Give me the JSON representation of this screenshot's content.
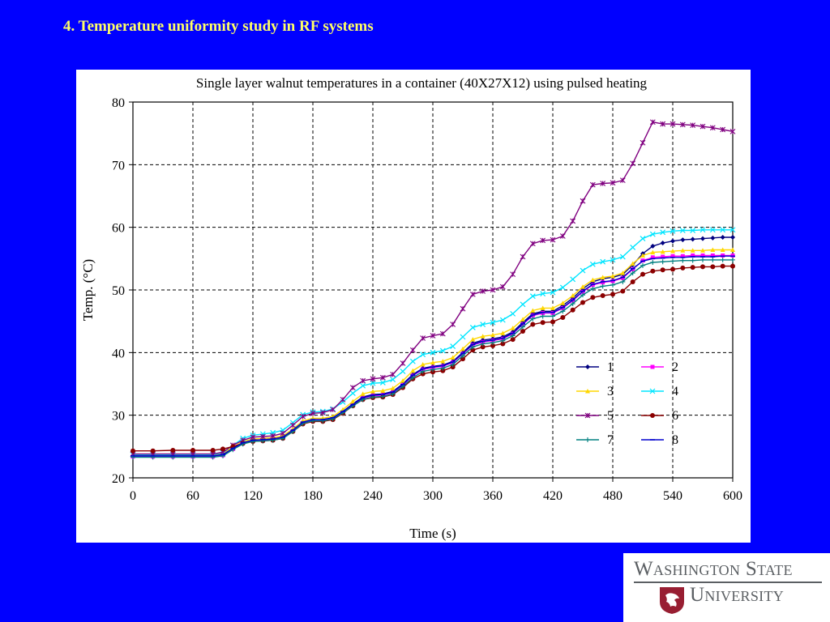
{
  "slide": {
    "title": "4. Temperature uniformity study in RF systems"
  },
  "logo": {
    "line1": "Washington State",
    "line2": "University",
    "color": "#5b5f63",
    "seal_color": "#981e32"
  },
  "chart_data": {
    "type": "line",
    "title": "Single layer walnut temperatures in a container (40X27X12) using pulsed heating",
    "xlabel": "Time (s)",
    "ylabel": "Temp. (°C)",
    "xlim": [
      0,
      600
    ],
    "ylim": [
      20,
      80
    ],
    "xticks": [
      0,
      60,
      120,
      180,
      240,
      300,
      360,
      420,
      480,
      540,
      600
    ],
    "yticks": [
      20,
      30,
      40,
      50,
      60,
      70,
      80
    ],
    "grid": true,
    "legend_placement": "lower-right",
    "x": [
      0,
      20,
      40,
      60,
      80,
      90,
      100,
      110,
      120,
      130,
      140,
      150,
      160,
      170,
      180,
      190,
      200,
      210,
      220,
      230,
      240,
      250,
      260,
      270,
      280,
      290,
      300,
      310,
      320,
      330,
      340,
      350,
      360,
      370,
      380,
      390,
      400,
      410,
      420,
      430,
      440,
      450,
      460,
      470,
      480,
      490,
      500,
      510,
      520,
      530,
      540,
      550,
      560,
      570,
      580,
      590,
      600
    ],
    "series": [
      {
        "name": "1",
        "color": "#000080",
        "marker": "diamond",
        "values": [
          23.6,
          23.6,
          23.6,
          23.6,
          23.6,
          23.8,
          24.8,
          25.6,
          26.0,
          26.1,
          26.2,
          26.5,
          27.6,
          28.9,
          29.3,
          29.3,
          29.6,
          30.6,
          31.8,
          32.9,
          33.3,
          33.4,
          33.8,
          35.0,
          36.5,
          37.5,
          37.8,
          38.0,
          38.6,
          40.0,
          41.5,
          42.0,
          42.2,
          42.5,
          43.3,
          44.8,
          46.2,
          46.6,
          46.6,
          47.5,
          48.7,
          50.2,
          51.3,
          51.8,
          52.0,
          52.5,
          54.0,
          55.8,
          57.0,
          57.5,
          57.8,
          58.0,
          58.1,
          58.2,
          58.3,
          58.4,
          58.4
        ]
      },
      {
        "name": "2",
        "color": "#FF00FF",
        "marker": "square",
        "values": [
          23.4,
          23.4,
          23.4,
          23.4,
          23.4,
          23.6,
          24.6,
          25.5,
          25.9,
          26.0,
          26.1,
          26.4,
          27.5,
          28.8,
          29.2,
          29.2,
          29.5,
          30.5,
          31.6,
          32.7,
          33.1,
          33.2,
          33.6,
          34.8,
          36.3,
          37.3,
          37.6,
          37.8,
          38.4,
          39.8,
          41.2,
          41.7,
          41.9,
          42.2,
          43.0,
          44.5,
          45.9,
          46.3,
          46.3,
          47.1,
          48.3,
          49.7,
          50.8,
          51.2,
          51.4,
          51.9,
          53.3,
          54.7,
          55.2,
          55.3,
          55.4,
          55.4,
          55.5,
          55.5,
          55.5,
          55.5,
          55.5
        ]
      },
      {
        "name": "3",
        "color": "#FFD700",
        "marker": "triangle",
        "values": [
          23.7,
          23.7,
          23.7,
          23.7,
          23.7,
          23.9,
          24.9,
          25.8,
          26.2,
          26.3,
          26.4,
          26.7,
          27.8,
          29.1,
          29.5,
          29.5,
          29.8,
          30.9,
          32.2,
          33.4,
          33.8,
          33.9,
          34.3,
          35.5,
          37.1,
          38.1,
          38.4,
          38.6,
          39.2,
          40.6,
          42.1,
          42.6,
          42.8,
          43.1,
          43.9,
          45.3,
          46.7,
          47.1,
          47.1,
          47.9,
          49.1,
          50.5,
          51.6,
          52.0,
          52.2,
          52.7,
          54.2,
          55.5,
          56.0,
          56.1,
          56.2,
          56.3,
          56.3,
          56.3,
          56.4,
          56.4,
          56.4
        ]
      },
      {
        "name": "4",
        "color": "#00E5FF",
        "marker": "x",
        "values": [
          23.7,
          23.7,
          23.7,
          23.7,
          23.7,
          24.0,
          25.2,
          26.3,
          26.8,
          27.0,
          27.2,
          27.6,
          28.8,
          30.1,
          30.5,
          30.6,
          31.0,
          32.1,
          33.5,
          34.7,
          35.1,
          35.2,
          35.7,
          37.0,
          38.6,
          39.7,
          40.0,
          40.3,
          41.0,
          42.5,
          44.0,
          44.5,
          44.8,
          45.2,
          46.2,
          47.7,
          49.0,
          49.4,
          49.6,
          50.4,
          51.7,
          53.1,
          54.1,
          54.5,
          54.8,
          55.3,
          56.8,
          58.2,
          58.9,
          59.2,
          59.4,
          59.5,
          59.5,
          59.6,
          59.6,
          59.6,
          59.6
        ]
      },
      {
        "name": "5",
        "color": "#800080",
        "marker": "star",
        "values": [
          23.8,
          23.8,
          23.8,
          23.8,
          23.8,
          24.1,
          25.2,
          26.0,
          26.5,
          26.6,
          26.7,
          27.1,
          28.4,
          29.8,
          30.3,
          30.4,
          30.9,
          32.5,
          34.4,
          35.5,
          35.8,
          36.0,
          36.5,
          38.3,
          40.4,
          42.3,
          42.7,
          43.0,
          44.5,
          47.0,
          49.3,
          49.8,
          50.0,
          50.5,
          52.5,
          55.3,
          57.4,
          57.9,
          58.0,
          58.6,
          61.0,
          64.2,
          66.8,
          67.0,
          67.1,
          67.5,
          70.2,
          73.5,
          76.8,
          76.5,
          76.5,
          76.4,
          76.3,
          76.1,
          75.9,
          75.6,
          75.3
        ]
      },
      {
        "name": "6",
        "color": "#8B0000",
        "marker": "circle",
        "values": [
          24.3,
          24.3,
          24.4,
          24.4,
          24.4,
          24.6,
          25.0,
          25.5,
          25.8,
          25.9,
          26.0,
          26.3,
          27.4,
          28.6,
          29.0,
          29.0,
          29.3,
          30.3,
          31.5,
          32.5,
          32.8,
          32.9,
          33.3,
          34.4,
          35.8,
          36.6,
          36.9,
          37.1,
          37.7,
          39.0,
          40.4,
          40.9,
          41.1,
          41.4,
          42.1,
          43.4,
          44.5,
          44.8,
          44.9,
          45.6,
          46.8,
          48.0,
          48.8,
          49.1,
          49.3,
          49.8,
          51.3,
          52.5,
          53.0,
          53.2,
          53.3,
          53.5,
          53.6,
          53.7,
          53.7,
          53.8,
          53.8
        ]
      },
      {
        "name": "7",
        "color": "#008080",
        "marker": "plus",
        "values": [
          23.3,
          23.3,
          23.3,
          23.3,
          23.3,
          23.5,
          24.5,
          25.4,
          25.8,
          25.9,
          26.0,
          26.3,
          27.4,
          28.7,
          29.1,
          29.1,
          29.4,
          30.4,
          31.5,
          32.5,
          32.9,
          33.0,
          33.4,
          34.6,
          36.0,
          37.0,
          37.3,
          37.5,
          38.1,
          39.5,
          40.9,
          41.4,
          41.6,
          41.9,
          42.7,
          44.1,
          45.4,
          45.8,
          45.8,
          46.6,
          47.8,
          49.2,
          50.2,
          50.6,
          50.8,
          51.3,
          52.7,
          53.9,
          54.4,
          54.5,
          54.6,
          54.7,
          54.7,
          54.8,
          54.8,
          54.8,
          54.8
        ]
      },
      {
        "name": "8",
        "color": "#0000CD",
        "marker": "dash",
        "values": [
          23.5,
          23.5,
          23.5,
          23.5,
          23.5,
          23.7,
          24.7,
          25.6,
          26.0,
          26.1,
          26.2,
          26.5,
          27.6,
          28.9,
          29.3,
          29.3,
          29.6,
          30.6,
          31.7,
          32.8,
          33.2,
          33.3,
          33.7,
          34.9,
          36.4,
          37.4,
          37.7,
          37.9,
          38.5,
          39.9,
          41.3,
          41.8,
          42.0,
          42.3,
          43.1,
          44.6,
          46.0,
          46.4,
          46.4,
          47.2,
          48.4,
          49.8,
          50.9,
          51.3,
          51.5,
          52.0,
          53.4,
          54.6,
          55.0,
          55.1,
          55.2,
          55.2,
          55.3,
          55.3,
          55.3,
          55.4,
          55.4
        ]
      }
    ]
  }
}
